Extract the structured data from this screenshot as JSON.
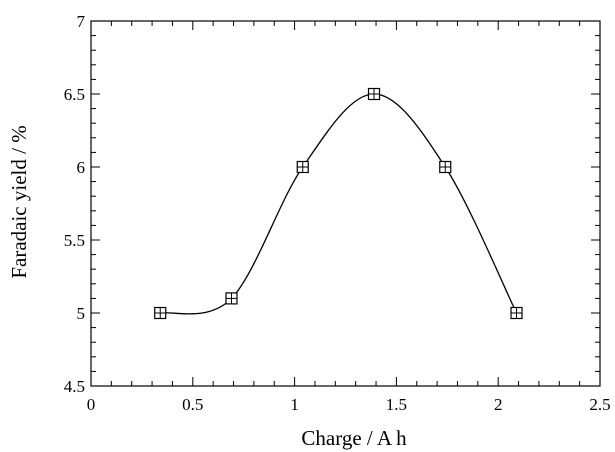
{
  "chart_data": {
    "type": "line",
    "title": "",
    "xlabel": "Charge / A h",
    "ylabel": "Faradaic yield / %",
    "xlim": [
      0,
      2.5
    ],
    "ylim": [
      4.5,
      7
    ],
    "x_ticks": [
      0,
      0.5,
      1,
      1.5,
      2,
      2.5
    ],
    "x_tick_labels": [
      "0",
      "0.5",
      "1",
      "1.5",
      "2",
      "2.5"
    ],
    "y_ticks": [
      4.5,
      5,
      5.5,
      6,
      6.5,
      7
    ],
    "y_tick_labels": [
      "4.5",
      "5",
      "5.5",
      "6",
      "6.5",
      "7"
    ],
    "grid": false,
    "line_style": "smooth",
    "marker": "square-with-cross",
    "series": [
      {
        "x": [
          0.34,
          0.69,
          1.04,
          1.39,
          1.74,
          2.09
        ],
        "y": [
          5.0,
          5.1,
          6.0,
          6.5,
          6.0,
          5.0
        ]
      }
    ],
    "colors": {
      "line": "#000000",
      "marker_fill": "#ffffff"
    }
  }
}
